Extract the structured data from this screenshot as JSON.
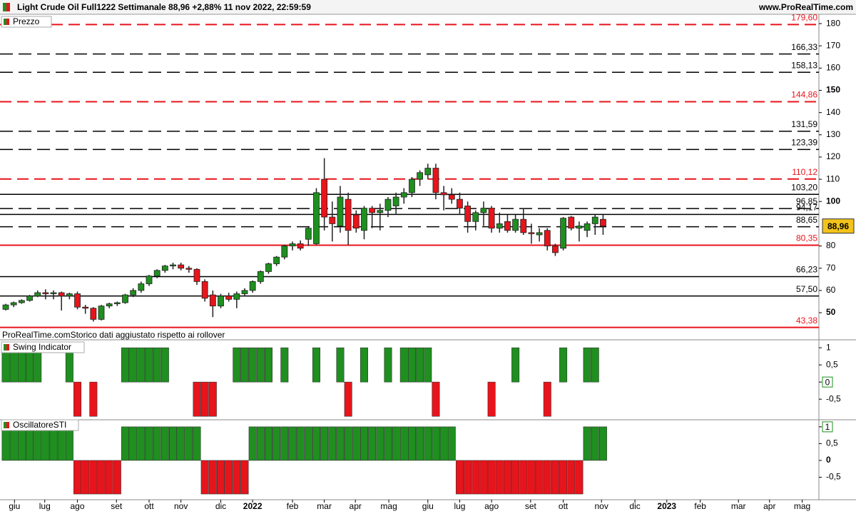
{
  "header": {
    "title": "Light Crude Oil Full1222 Settimanale 88,96 +2,88% 11 nov 2022, 22:59:59",
    "site": "www.ProRealTime.com"
  },
  "chart_data": [
    {
      "type": "candlestick",
      "title": "Prezzo",
      "note": "ProRealTime.comStorico dati aggiustato rispetto ai rollover",
      "colors": {
        "up": "#1f8f1f",
        "down": "#e8141b"
      },
      "open": [
        51.5,
        53.5,
        54.5,
        55.5,
        57.5,
        59,
        58.5,
        59,
        57.5,
        58.5,
        52.5,
        52,
        47,
        53,
        54,
        54.5,
        58,
        60,
        63,
        66.5,
        69,
        71,
        71.5,
        70,
        69.5,
        64,
        58,
        53,
        57.5,
        56,
        58.5,
        60,
        64,
        68.5,
        72,
        75,
        80,
        81,
        83,
        81,
        110,
        93,
        89,
        101,
        94,
        87,
        97,
        95,
        96,
        98,
        102,
        104,
        110,
        112,
        115,
        104,
        103,
        101,
        98,
        91,
        95,
        97,
        88,
        91,
        87,
        92,
        86,
        85,
        87,
        80,
        79,
        93,
        88,
        87,
        90,
        92
      ],
      "high": [
        54,
        55,
        56,
        58,
        60,
        60.5,
        60,
        59.5,
        59,
        59.5,
        53.5,
        52.5,
        53.5,
        54.5,
        55,
        58.5,
        61,
        64,
        67,
        69.5,
        71.5,
        72.5,
        72.5,
        71,
        70,
        65,
        60,
        58.5,
        59,
        59.5,
        61,
        64.5,
        69,
        72.5,
        75.5,
        80.5,
        82,
        82.5,
        88.5,
        106,
        119.5,
        100,
        107,
        104,
        96,
        98,
        98,
        99,
        102,
        104,
        106,
        111,
        114,
        117,
        117,
        107,
        106,
        104,
        100,
        96,
        100,
        98,
        95,
        94,
        94,
        97,
        90,
        88,
        88,
        81,
        93,
        93.5,
        91,
        91,
        94,
        94
      ],
      "low": [
        51,
        52.5,
        54,
        55,
        57,
        56,
        56,
        51,
        56,
        51.5,
        49.5,
        46,
        46.5,
        52,
        53,
        54,
        57,
        59,
        62,
        65.5,
        68,
        69.5,
        69,
        68,
        62.5,
        55,
        48,
        52,
        55,
        52,
        57.5,
        59,
        63,
        67.5,
        71,
        74,
        78,
        78,
        80,
        80.5,
        87,
        82,
        86,
        80.5,
        86,
        83,
        88,
        87,
        93,
        94,
        99,
        102,
        107,
        110,
        101,
        96,
        99,
        94,
        86,
        87,
        89,
        86,
        86,
        86,
        86,
        85,
        81,
        82,
        78,
        75.5,
        78,
        87,
        82,
        84,
        85,
        85
      ],
      "close": [
        53.5,
        54.5,
        55.5,
        57.5,
        59,
        58.5,
        59,
        57.5,
        58.5,
        52.5,
        52,
        47,
        53,
        54,
        54.5,
        58,
        60,
        63,
        66.5,
        69,
        71,
        71.5,
        70,
        69.5,
        64,
        56.5,
        53,
        57.5,
        56,
        58.5,
        60,
        64,
        68.5,
        72,
        75,
        80,
        81,
        79,
        88,
        104,
        93,
        90,
        102,
        87,
        88,
        97,
        95,
        96,
        101,
        102,
        104,
        110,
        113,
        115,
        104,
        103,
        101,
        97,
        91,
        95,
        97,
        88,
        90,
        87,
        92,
        86,
        85.5,
        86,
        80,
        77,
        92.5,
        88,
        89,
        90,
        93,
        88.96
      ],
      "ylim": [
        37.8,
        184.2
      ],
      "yticks": [
        50,
        60,
        70,
        80,
        100,
        110,
        120,
        130,
        140,
        150,
        160,
        170,
        180
      ],
      "xlim": [
        -0.72,
        102.1
      ],
      "xticks": [
        {
          "value": 1.1,
          "label": "giu"
        },
        {
          "value": 4.9,
          "label": "lug"
        },
        {
          "value": 9,
          "label": "ago"
        },
        {
          "value": 13.9,
          "label": "set"
        },
        {
          "value": 18,
          "label": "ott"
        },
        {
          "value": 22,
          "label": "nov"
        },
        {
          "value": 27,
          "label": "dic"
        },
        {
          "value": 31,
          "label": "2022"
        },
        {
          "value": 36,
          "label": "feb"
        },
        {
          "value": 40,
          "label": "mar"
        },
        {
          "value": 43.9,
          "label": "apr"
        },
        {
          "value": 48.1,
          "label": "mag"
        },
        {
          "value": 53,
          "label": "giu"
        },
        {
          "value": 57,
          "label": "lug"
        },
        {
          "value": 61,
          "label": "ago"
        },
        {
          "value": 65.9,
          "label": "set"
        },
        {
          "value": 70,
          "label": "ott"
        },
        {
          "value": 74.8,
          "label": "nov"
        },
        {
          "value": 79,
          "label": "dic"
        },
        {
          "value": 83,
          "label": "2023"
        },
        {
          "value": 87.2,
          "label": "feb"
        },
        {
          "value": 92,
          "label": "mar"
        },
        {
          "value": 95.9,
          "label": "apr"
        },
        {
          "value": 100,
          "label": "mag"
        }
      ],
      "levels": [
        {
          "value": 179.6,
          "label": "179,60",
          "color": "#e8141b",
          "style": "dashed"
        },
        {
          "value": 166.33,
          "label": "166,33",
          "color": "#000000",
          "style": "dashed"
        },
        {
          "value": 158.13,
          "label": "158,13",
          "color": "#000000",
          "style": "dashed"
        },
        {
          "value": 144.86,
          "label": "144,86",
          "color": "#e8141b",
          "style": "dashed"
        },
        {
          "value": 131.59,
          "label": "131,59",
          "color": "#000000",
          "style": "dashed"
        },
        {
          "value": 123.39,
          "label": "123,39",
          "color": "#000000",
          "style": "dashed"
        },
        {
          "value": 110.12,
          "label": "110,12",
          "color": "#e8141b",
          "style": "dashed"
        },
        {
          "value": 103.2,
          "label": "103,20",
          "color": "#000000",
          "style": "solid"
        },
        {
          "value": 96.85,
          "label": "96,85",
          "color": "#000000",
          "style": "dashed"
        },
        {
          "value": 94.17,
          "label": "94,17",
          "color": "#000000",
          "style": "solid"
        },
        {
          "value": 88.65,
          "label": "88,65",
          "color": "#000000",
          "style": "dashed"
        },
        {
          "value": 80.35,
          "label": "80,35",
          "color": "#e8141b",
          "style": "solid"
        },
        {
          "value": 66.23,
          "label": "66,23",
          "color": "#000000",
          "style": "solid"
        },
        {
          "value": 57.5,
          "label": "57,50",
          "color": "#000000",
          "style": "solid"
        },
        {
          "value": 43.38,
          "label": "43,38",
          "color": "#e8141b",
          "style": "solid"
        }
      ],
      "last": {
        "value": 88.96,
        "label": "88,96"
      }
    },
    {
      "type": "bar",
      "title": "Swing Indicator",
      "colors": {
        "up": "#1f8f1f",
        "down": "#e8141b"
      },
      "values": [
        1,
        1,
        1,
        1,
        1,
        0,
        0,
        0,
        1,
        -1,
        0,
        -1,
        0,
        0,
        0,
        1,
        1,
        1,
        1,
        1,
        1,
        0,
        0,
        0,
        -1,
        -1,
        -1,
        0,
        0,
        1,
        1,
        1,
        1,
        1,
        0,
        1,
        0,
        0,
        0,
        1,
        0,
        0,
        1,
        -1,
        0,
        1,
        0,
        0,
        1,
        0,
        1,
        1,
        1,
        1,
        -1,
        0,
        0,
        0,
        0,
        0,
        0,
        -1,
        0,
        0,
        1,
        0,
        0,
        0,
        -1,
        0,
        1,
        0,
        0,
        1,
        1,
        0
      ],
      "ylim": [
        -1.1,
        1.19
      ],
      "yticks": [
        1,
        {
          "value": 0.5,
          "label": "0,5"
        },
        0,
        {
          "value": -0.5,
          "label": "-0,5"
        }
      ]
    },
    {
      "type": "bar",
      "title": "OscillatoreSTI",
      "colors": {
        "up": "#1f8f1f",
        "down": "#e8141b"
      },
      "values": [
        1,
        1,
        1,
        1,
        1,
        1,
        1,
        1,
        1,
        -1,
        -1,
        -1,
        -1,
        -1,
        -1,
        1,
        1,
        1,
        1,
        1,
        1,
        1,
        1,
        1,
        1,
        -1,
        -1,
        -1,
        -1,
        -1,
        -1,
        1,
        1,
        1,
        1,
        1,
        1,
        1,
        1,
        1,
        1,
        1,
        1,
        1,
        1,
        1,
        1,
        1,
        1,
        1,
        1,
        1,
        1,
        1,
        1,
        1,
        1,
        -1,
        -1,
        -1,
        -1,
        -1,
        -1,
        -1,
        -1,
        -1,
        -1,
        -1,
        -1,
        -1,
        -1,
        -1,
        -1,
        1,
        1,
        1
      ],
      "ylim": [
        -1.17,
        1.21
      ],
      "yticks": [
        1,
        {
          "value": 0.5,
          "label": "0,5"
        },
        0,
        {
          "value": -0.5,
          "label": "-0,5"
        }
      ]
    }
  ]
}
